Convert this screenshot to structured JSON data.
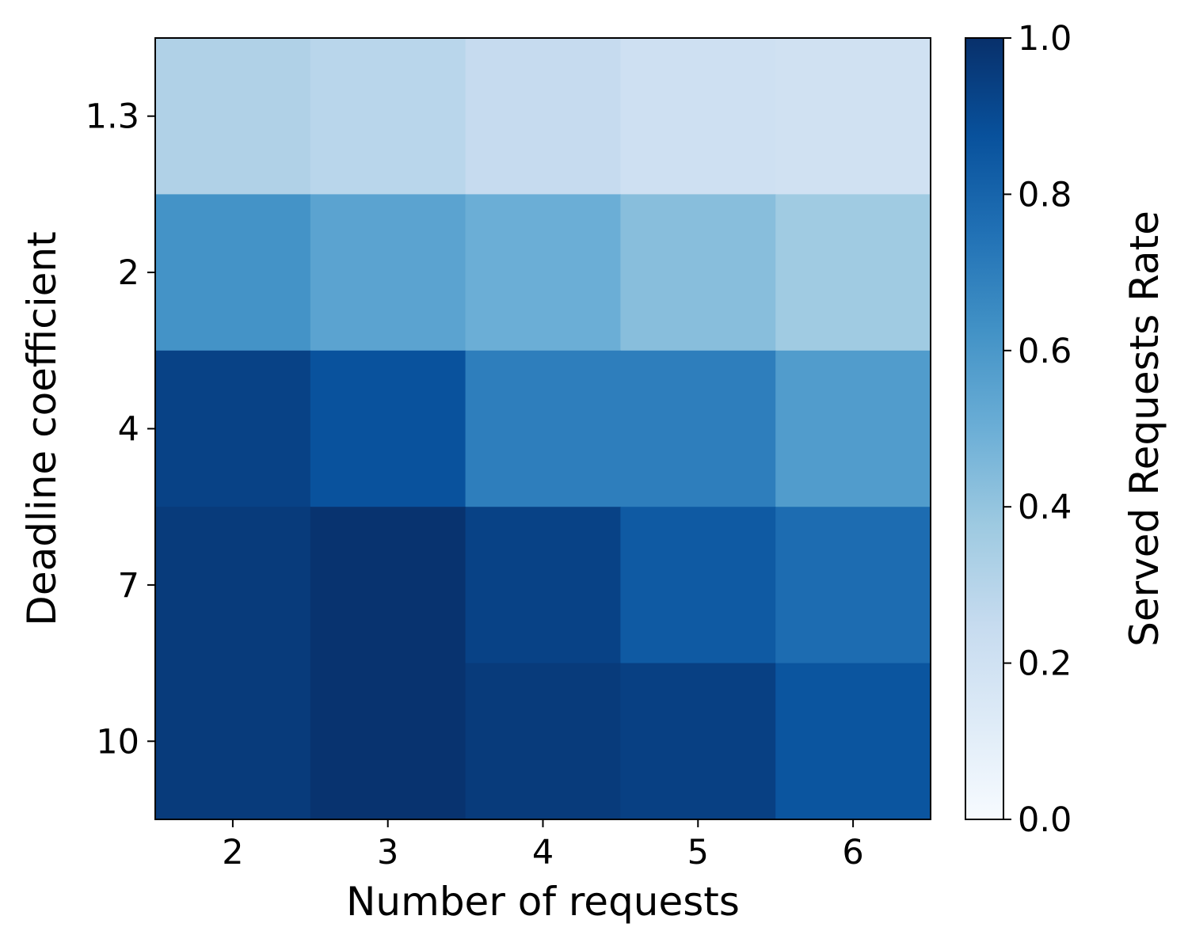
{
  "chart_data": {
    "type": "heatmap",
    "title": "",
    "xlabel": "Number of requests",
    "ylabel": "Deadline coefficient",
    "x_categories": [
      "2",
      "3",
      "4",
      "5",
      "6"
    ],
    "y_categories": [
      "1.3",
      "2",
      "4",
      "7",
      "10"
    ],
    "values": [
      [
        0.32,
        0.29,
        0.25,
        0.21,
        0.2
      ],
      [
        0.62,
        0.55,
        0.5,
        0.43,
        0.37
      ],
      [
        0.93,
        0.87,
        0.7,
        0.7,
        0.58
      ],
      [
        0.96,
        0.99,
        0.93,
        0.84,
        0.77
      ],
      [
        0.96,
        0.99,
        0.96,
        0.94,
        0.86
      ]
    ],
    "colormap": "Blues",
    "colorbar": {
      "label": "Served Requests Rate",
      "range": [
        0.0,
        1.0
      ],
      "ticks": [
        "0.0",
        "0.2",
        "0.4",
        "0.6",
        "0.8",
        "1.0"
      ]
    },
    "grid": false,
    "legend": "colorbar-right"
  }
}
